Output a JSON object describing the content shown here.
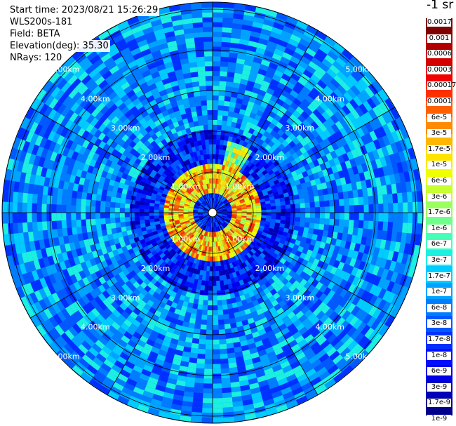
{
  "info": {
    "start_time": "Start time: 2023/08/21 15:26:29",
    "device": "WLS200s-181",
    "field": "Field: BETA",
    "elevation": "Elevation(deg): 35.30",
    "nrays": "NRays: 120"
  },
  "colorbar": {
    "unit": "-1 sr",
    "colors": [
      "#7f0000",
      "#b20000",
      "#d40000",
      "#f00000",
      "#ff3000",
      "#ff6000",
      "#ff8c00",
      "#ffb800",
      "#ffe400",
      "#f0ff00",
      "#c8ff30",
      "#9aff5e",
      "#70ff8a",
      "#45ffb8",
      "#1cf0e0",
      "#00ccff",
      "#00a4ff",
      "#007cff",
      "#0058ff",
      "#0030ff",
      "#0010ff",
      "#0000e4",
      "#0000b8",
      "#00008c"
    ],
    "labels": [
      "0.0017",
      "0.001",
      "0.0006",
      "0.0003",
      "0.00017",
      "0.0001",
      "6e-5",
      "3e-5",
      "1.7e-5",
      "1e-5",
      "6e-6",
      "3e-6",
      "1.7e-6",
      "1e-6",
      "6e-7",
      "3e-7",
      "1.7e-7",
      "1e-7",
      "6e-8",
      "3e-8",
      "1.7e-8",
      "1e-8",
      "6e-9",
      "3e-9",
      "1.7e-9",
      "1e-9"
    ]
  },
  "chart_data": {
    "type": "heatmap",
    "projection": "polar",
    "range_unit": "km",
    "range_max_km": 6.0,
    "range_ring_labels": [
      "1.00km",
      "2.00km",
      "3.00km",
      "4.00km",
      "5.00km"
    ],
    "nrays": 120,
    "spokes_deg": [
      0,
      30,
      60,
      90,
      120,
      150,
      180,
      210,
      240,
      270,
      300,
      330
    ],
    "field": "BETA",
    "features": [
      {
        "description": "high backscatter ring",
        "range_km": [
          0.4,
          1.1
        ],
        "value_range": [
          "1e-5",
          "3e-4"
        ]
      },
      {
        "description": "plume toward north-northeast",
        "azimuth_deg": [
          10,
          30
        ],
        "range_km": [
          0.8,
          1.8
        ],
        "value_range": [
          "3e-6",
          "3e-5"
        ]
      }
    ],
    "background_value_range": [
      "1e-8",
      "1.7e-7"
    ]
  }
}
